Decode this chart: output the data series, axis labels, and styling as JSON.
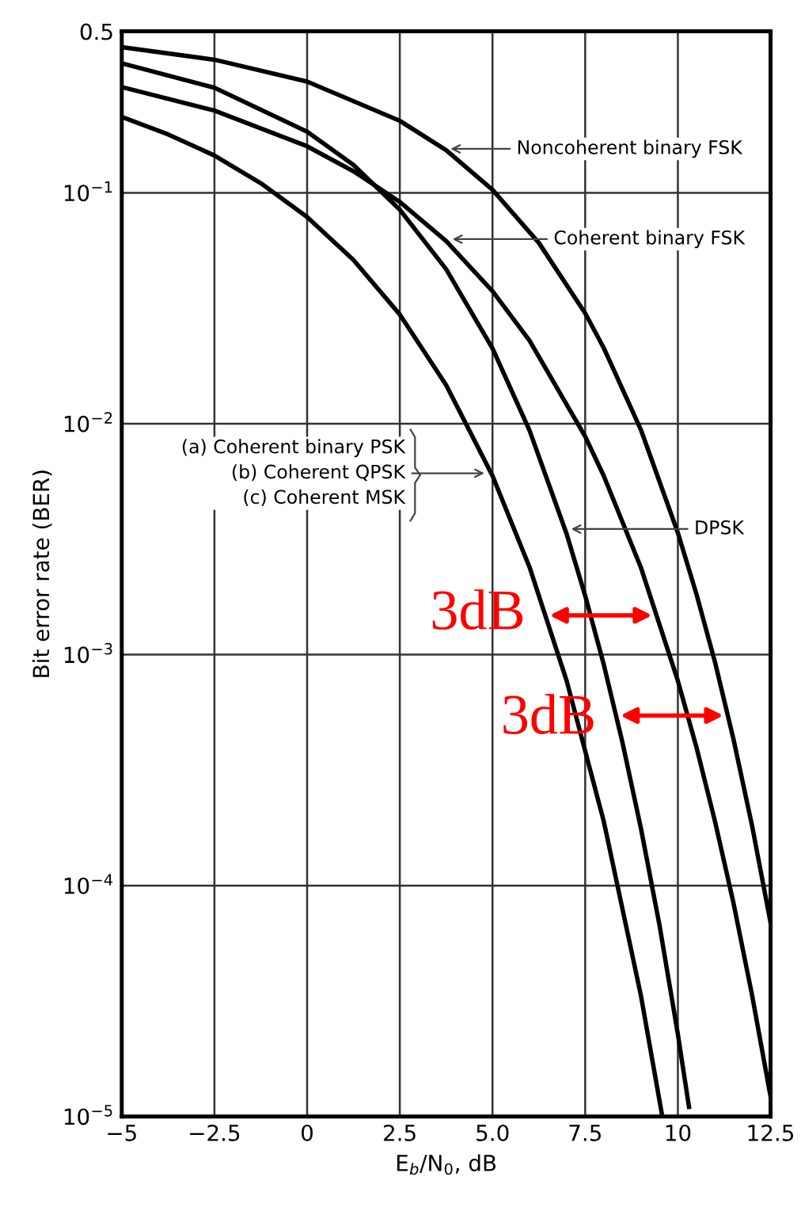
{
  "chart_data": {
    "type": "line",
    "ylabel": "Bit error rate (BER)",
    "xlabel": "E$_{b}$/N$_{0}$, dB",
    "log": "y",
    "grid": true,
    "legend": false,
    "marker": "none",
    "line_style": "solid",
    "xlim": [
      -5,
      12.5
    ],
    "xticks": [
      {
        "value": -5,
        "label": "−5"
      },
      {
        "value": -2.5,
        "label": "−2.5"
      },
      0,
      2.5,
      {
        "value": 5,
        "label": "5.0"
      },
      7.5,
      10,
      12.5
    ],
    "ylim": [
      1e-05,
      0.5
    ],
    "yticks": [
      {
        "value": 1e-05,
        "label": "10$^{−5}$"
      },
      {
        "value": 0.0001,
        "label": "10$^{−4}$"
      },
      {
        "value": 0.001,
        "label": "10$^{−3}$"
      },
      {
        "value": 0.01,
        "label": "10$^{−2}$"
      },
      {
        "value": 0.1,
        "label": "10$^{−1}$"
      },
      0.5
    ],
    "series": [
      {
        "color": "#000000",
        "x": [
          -5,
          -3.75,
          -2.5,
          -1.25,
          0,
          1.25,
          2.5,
          3.75,
          5,
          6,
          7,
          8,
          9,
          9.58
        ],
        "values": [
          0.213,
          0.179,
          0.145,
          0.11,
          0.0786,
          0.0512,
          0.0297,
          0.0147,
          0.00595,
          0.00239,
          0.00077,
          0.00019,
          3.36e-05,
          1e-05
        ]
      },
      {
        "color": "#000000",
        "x": [
          -5,
          -2.5,
          0,
          1.25,
          2.5,
          3.75,
          5,
          6,
          7.5,
          8,
          9,
          10,
          10.5,
          11,
          11.5,
          12,
          12.5
        ],
        "values": [
          0.287,
          0.227,
          0.159,
          0.124,
          0.0913,
          0.0618,
          0.0375,
          0.0229,
          0.0088,
          0.00595,
          0.00239,
          0.00077,
          0.000398,
          0.00019,
          8.4e-05,
          3.36e-05,
          1.22e-05
        ]
      },
      {
        "color": "#000000",
        "x": [
          -5,
          -2.5,
          0,
          1.25,
          2.5,
          3.75,
          5,
          6,
          7,
          7.5,
          8,
          8.5,
          9,
          9.5,
          10,
          10.3
        ],
        "values": [
          0.364,
          0.285,
          0.184,
          0.132,
          0.0845,
          0.0467,
          0.0212,
          0.00934,
          0.00333,
          0.0018,
          0.000908,
          0.00042,
          0.000178,
          6.8e-05,
          2.27e-05,
          1.1e-05
        ]
      },
      {
        "color": "#000000",
        "x": [
          -5,
          -2.5,
          0,
          2.5,
          3.75,
          5,
          6.25,
          7.5,
          8,
          9,
          10,
          10.5,
          11,
          11.5,
          12,
          12.5
        ],
        "values": [
          0.427,
          0.377,
          0.303,
          0.205,
          0.153,
          0.103,
          0.0607,
          0.0301,
          0.0213,
          0.00944,
          0.00337,
          0.00183,
          0.00093,
          0.00043,
          0.000182,
          6.9e-05
        ]
      }
    ],
    "annotations": [
      {
        "text": "Noncoherent binary FSK",
        "x": 3.75,
        "y": 0.155
      },
      {
        "text": "Coherent binary FSK",
        "x": 3.8,
        "y": 0.063
      },
      {
        "text": "(a) Coherent binary PSK\n(b) Coherent QPSK\n(c) Coherent MSK",
        "x": 4.9,
        "y": 0.0061
      },
      {
        "text": "DPSK",
        "x": 7.0,
        "y": 0.0035
      },
      {
        "text": "3dB",
        "x": 6.42,
        "y": 0.00148
      },
      {
        "text": "3dB",
        "x": 8.33,
        "y": 0.000545
      }
    ]
  }
}
